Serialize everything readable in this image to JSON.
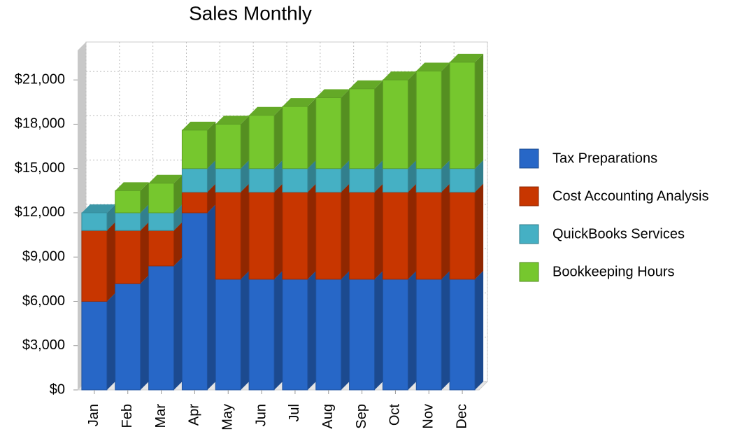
{
  "chart_data": {
    "type": "bar3d_stacked",
    "title": "Sales Monthly",
    "categories": [
      "Jan",
      "Feb",
      "Mar",
      "Apr",
      "May",
      "Jun",
      "Jul",
      "Aug",
      "Sep",
      "Oct",
      "Nov",
      "Dec"
    ],
    "series": [
      {
        "name": "Tax Preparations",
        "color": "#2767c7",
        "values": [
          6000,
          7200,
          8400,
          12000,
          7500,
          7500,
          7500,
          7500,
          7500,
          7500,
          7500,
          7500
        ]
      },
      {
        "name": "Cost Accounting Analysis",
        "color": "#c83600",
        "values": [
          4800,
          3600,
          2400,
          1400,
          5900,
          5900,
          5900,
          5900,
          5900,
          5900,
          5900,
          5900
        ]
      },
      {
        "name": "QuickBooks Services",
        "color": "#45b0c4",
        "values": [
          1200,
          1200,
          1200,
          1600,
          1600,
          1600,
          1600,
          1600,
          1600,
          1600,
          1600,
          1600
        ]
      },
      {
        "name": "Bookkeeping Hours",
        "color": "#76c72e",
        "values": [
          0,
          1500,
          2000,
          2600,
          3000,
          3600,
          4200,
          4800,
          5400,
          6000,
          6600,
          7200
        ]
      }
    ],
    "ylim": [
      0,
      23000
    ],
    "yticks": [
      {
        "value": 0,
        "label": "$0"
      },
      {
        "value": 3000,
        "label": "$3,000"
      },
      {
        "value": 6000,
        "label": "$6,000"
      },
      {
        "value": 9000,
        "label": "$9,000"
      },
      {
        "value": 12000,
        "label": "$12,000"
      },
      {
        "value": 15000,
        "label": "$15,000"
      },
      {
        "value": 18000,
        "label": "$18,000"
      },
      {
        "value": 21000,
        "label": "$21,000"
      }
    ],
    "grid": true,
    "legend": "right"
  }
}
